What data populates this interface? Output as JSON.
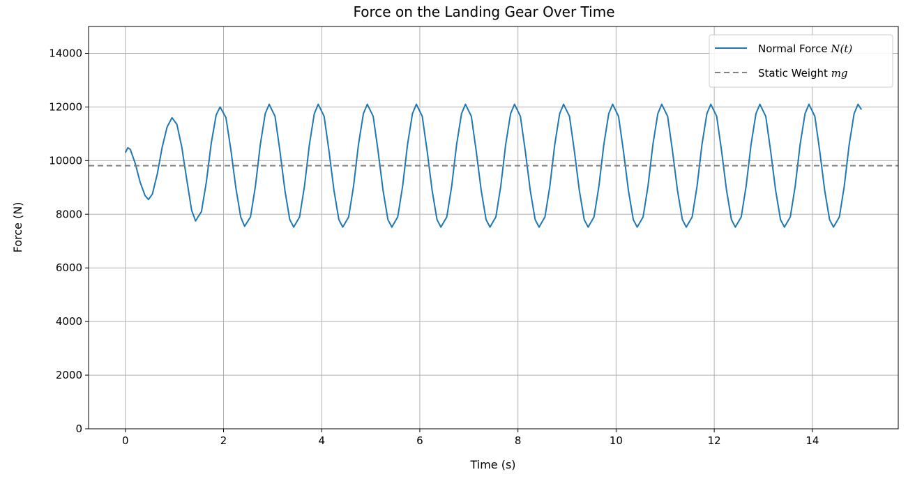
{
  "chart_data": {
    "type": "line",
    "title": "Force on the Landing Gear Over Time",
    "xlabel": "Time (s)",
    "ylabel": "Force (N)",
    "xlim": [
      -0.75,
      15.75
    ],
    "ylim": [
      0,
      15000
    ],
    "xticks": [
      0,
      2,
      4,
      6,
      8,
      10,
      12,
      14
    ],
    "yticks": [
      0,
      2000,
      4000,
      6000,
      8000,
      10000,
      12000,
      14000
    ],
    "grid": true,
    "legend_position": "top-right",
    "series": [
      {
        "name": "Normal Force N(t)",
        "legend_text": "Normal Force ",
        "legend_math": "N(t)",
        "color": "#1f77b4",
        "style": "solid",
        "x": [
          0,
          0.05,
          0.1,
          0.2,
          0.3,
          0.4,
          0.47,
          0.55,
          0.65,
          0.75,
          0.85,
          0.95,
          1.05,
          1.15,
          1.25,
          1.35,
          1.43,
          1.55,
          1.65,
          1.75,
          1.85,
          1.93,
          2.05,
          2.15,
          2.25,
          2.35,
          2.43,
          2.55,
          2.65,
          2.75,
          2.85,
          2.93,
          3.05,
          3.15,
          3.25,
          3.35,
          3.43,
          3.55,
          3.65,
          3.75,
          3.85,
          3.93,
          4.05,
          4.15,
          4.25,
          4.35,
          4.43,
          4.55,
          4.65,
          4.75,
          4.85,
          4.93,
          5.05,
          5.15,
          5.25,
          5.35,
          5.43,
          5.55,
          5.65,
          5.75,
          5.85,
          5.93,
          6.05,
          6.15,
          6.25,
          6.35,
          6.43,
          6.55,
          6.65,
          6.75,
          6.85,
          6.93,
          7.05,
          7.15,
          7.25,
          7.35,
          7.43,
          7.55,
          7.65,
          7.75,
          7.85,
          7.93,
          8.05,
          8.15,
          8.25,
          8.35,
          8.43,
          8.55,
          8.65,
          8.75,
          8.85,
          8.93,
          9.05,
          9.15,
          9.25,
          9.35,
          9.43,
          9.55,
          9.65,
          9.75,
          9.85,
          9.93,
          10.05,
          10.15,
          10.25,
          10.35,
          10.43,
          10.55,
          10.65,
          10.75,
          10.85,
          10.93,
          11.05,
          11.15,
          11.25,
          11.35,
          11.43,
          11.55,
          11.65,
          11.75,
          11.85,
          11.93,
          12.05,
          12.15,
          12.25,
          12.35,
          12.43,
          12.55,
          12.65,
          12.75,
          12.85,
          12.93,
          13.05,
          13.15,
          13.25,
          13.35,
          13.43,
          13.55,
          13.65,
          13.75,
          13.85,
          13.93,
          14.05,
          14.15,
          14.25,
          14.35,
          14.43,
          14.55,
          14.65,
          14.75,
          14.85,
          14.93,
          15.0
        ],
        "y": [
          10300,
          10480,
          10420,
          9900,
          9200,
          8700,
          8550,
          8750,
          9500,
          10500,
          11250,
          11600,
          11350,
          10500,
          9300,
          8150,
          7750,
          8100,
          9200,
          10650,
          11700,
          12000,
          11600,
          10400,
          9000,
          7900,
          7550,
          7900,
          9050,
          10600,
          11750,
          12100,
          11650,
          10350,
          8900,
          7800,
          7520,
          7900,
          9050,
          10600,
          11750,
          12100,
          11650,
          10350,
          8900,
          7800,
          7520,
          7900,
          9050,
          10600,
          11750,
          12100,
          11650,
          10350,
          8900,
          7800,
          7520,
          7900,
          9050,
          10600,
          11750,
          12100,
          11650,
          10350,
          8900,
          7800,
          7520,
          7900,
          9050,
          10600,
          11750,
          12100,
          11650,
          10350,
          8900,
          7800,
          7520,
          7900,
          9050,
          10600,
          11750,
          12100,
          11650,
          10350,
          8900,
          7800,
          7520,
          7900,
          9050,
          10600,
          11750,
          12100,
          11650,
          10350,
          8900,
          7800,
          7520,
          7900,
          9050,
          10600,
          11750,
          12100,
          11650,
          10350,
          8900,
          7800,
          7520,
          7900,
          9050,
          10600,
          11750,
          12100,
          11650,
          10350,
          8900,
          7800,
          7520,
          7900,
          9050,
          10600,
          11750,
          12100,
          11650,
          10350,
          8900,
          7800,
          7520,
          7900,
          9050,
          10600,
          11750,
          12100,
          11650,
          10350,
          8900,
          7800,
          7520,
          7900,
          9050,
          10600,
          11750,
          12100,
          11650,
          10350,
          8900,
          7800,
          7520,
          7900,
          9050,
          10600,
          11750,
          12100,
          11900
        ]
      },
      {
        "name": "Static Weight mg",
        "legend_text": "Static Weight ",
        "legend_math": "mg",
        "color": "#808080",
        "style": "dashed",
        "x": [
          -0.75,
          15.75
        ],
        "y": [
          9810,
          9810
        ]
      }
    ]
  }
}
